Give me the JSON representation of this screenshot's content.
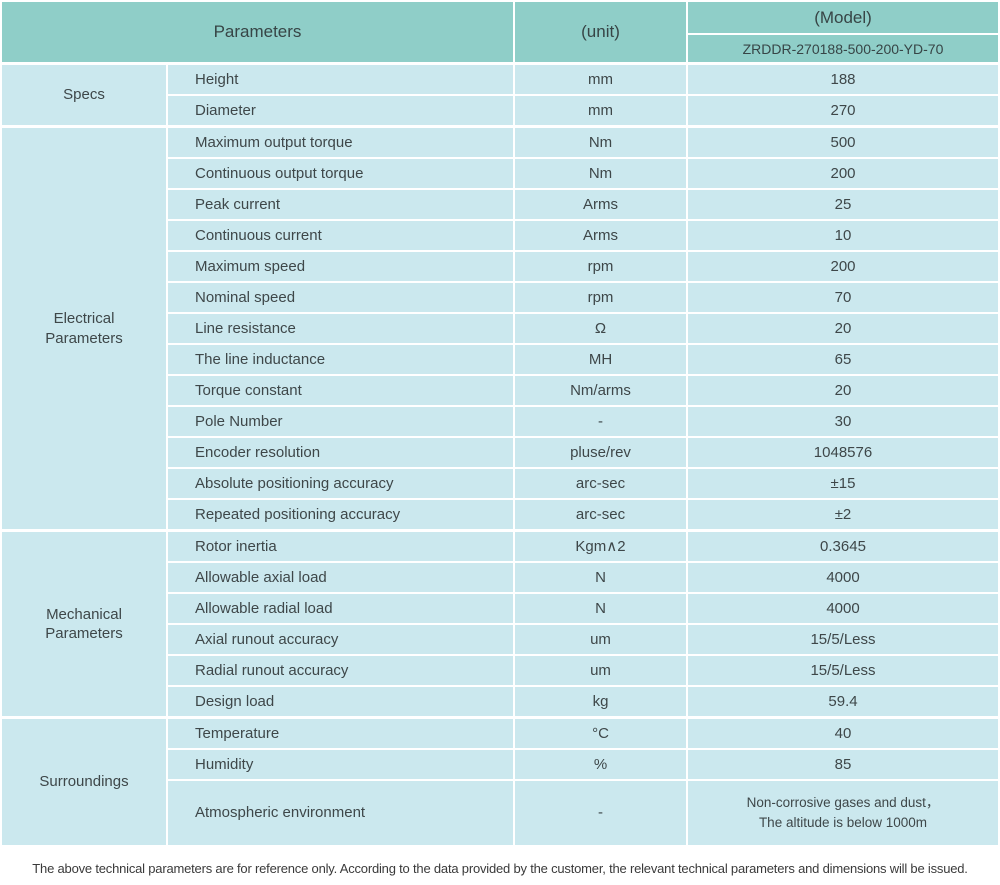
{
  "colors": {
    "header_bg": "#8FCEC8",
    "row_bg": "#CBE8EE",
    "divider": "#FFFFFF",
    "text": "#3E4749"
  },
  "header": {
    "parameters_label": "Parameters",
    "unit_label": "(unit)",
    "model_label": "(Model)",
    "model_value": "ZRDDR-270188-500-200-YD-70"
  },
  "sections": [
    {
      "id": "specs",
      "group": "Specs",
      "rows": [
        {
          "name": "Height",
          "unit": "mm",
          "value": "188"
        },
        {
          "name": "Diameter",
          "unit": "mm",
          "value": "270"
        }
      ]
    },
    {
      "id": "electrical-parameters",
      "group": "Electrical\nParameters",
      "rows": [
        {
          "name": "Maximum output torque",
          "unit": "Nm",
          "value": "500"
        },
        {
          "name": "Continuous output torque",
          "unit": "Nm",
          "value": "200"
        },
        {
          "name": "Peak current",
          "unit": "Arms",
          "value": "25"
        },
        {
          "name": "Continuous current",
          "unit": "Arms",
          "value": "10"
        },
        {
          "name": "Maximum speed",
          "unit": "rpm",
          "value": "200"
        },
        {
          "name": "Nominal speed",
          "unit": "rpm",
          "value": "70"
        },
        {
          "name": "Line resistance",
          "unit": "Ω",
          "value": "20"
        },
        {
          "name": "The line inductance",
          "unit": "MH",
          "value": "65"
        },
        {
          "name": "Torque constant",
          "unit": "Nm/arms",
          "value": "20"
        },
        {
          "name": "Pole Number",
          "unit": "-",
          "value": "30"
        },
        {
          "name": "Encoder resolution",
          "unit": "pluse/rev",
          "value": "1048576"
        },
        {
          "name": "Absolute positioning accuracy",
          "unit": "arc-sec",
          "value": "±15"
        },
        {
          "name": "Repeated positioning accuracy",
          "unit": "arc-sec",
          "value": "±2"
        }
      ]
    },
    {
      "id": "mechanical-parameters",
      "group": "Mechanical\nParameters",
      "rows": [
        {
          "name": "Rotor inertia",
          "unit": "Kgm∧2",
          "value": "0.3645"
        },
        {
          "name": "Allowable axial load",
          "unit": "N",
          "value": "4000"
        },
        {
          "name": "Allowable radial load",
          "unit": "N",
          "value": "4000"
        },
        {
          "name": "Axial runout accuracy",
          "unit": "um",
          "value": "15/5/Less"
        },
        {
          "name": "Radial runout accuracy",
          "unit": "um",
          "value": "15/5/Less"
        },
        {
          "name": "Design load",
          "unit": "kg",
          "value": "59.4"
        }
      ]
    },
    {
      "id": "surroundings",
      "group": "Surroundings",
      "rows": [
        {
          "name": "Temperature",
          "unit": "°C",
          "value": "40"
        },
        {
          "name": "Humidity",
          "unit": "%",
          "value": "85"
        },
        {
          "name": "Atmospheric environment",
          "unit": "-",
          "value": "Non-corrosive gases and dust，\nThe altitude is below 1000m",
          "tall": true
        }
      ]
    }
  ],
  "footnote": "The above technical parameters are for reference only. According to the data provided by the customer, the relevant technical parameters and dimensions will be issued."
}
